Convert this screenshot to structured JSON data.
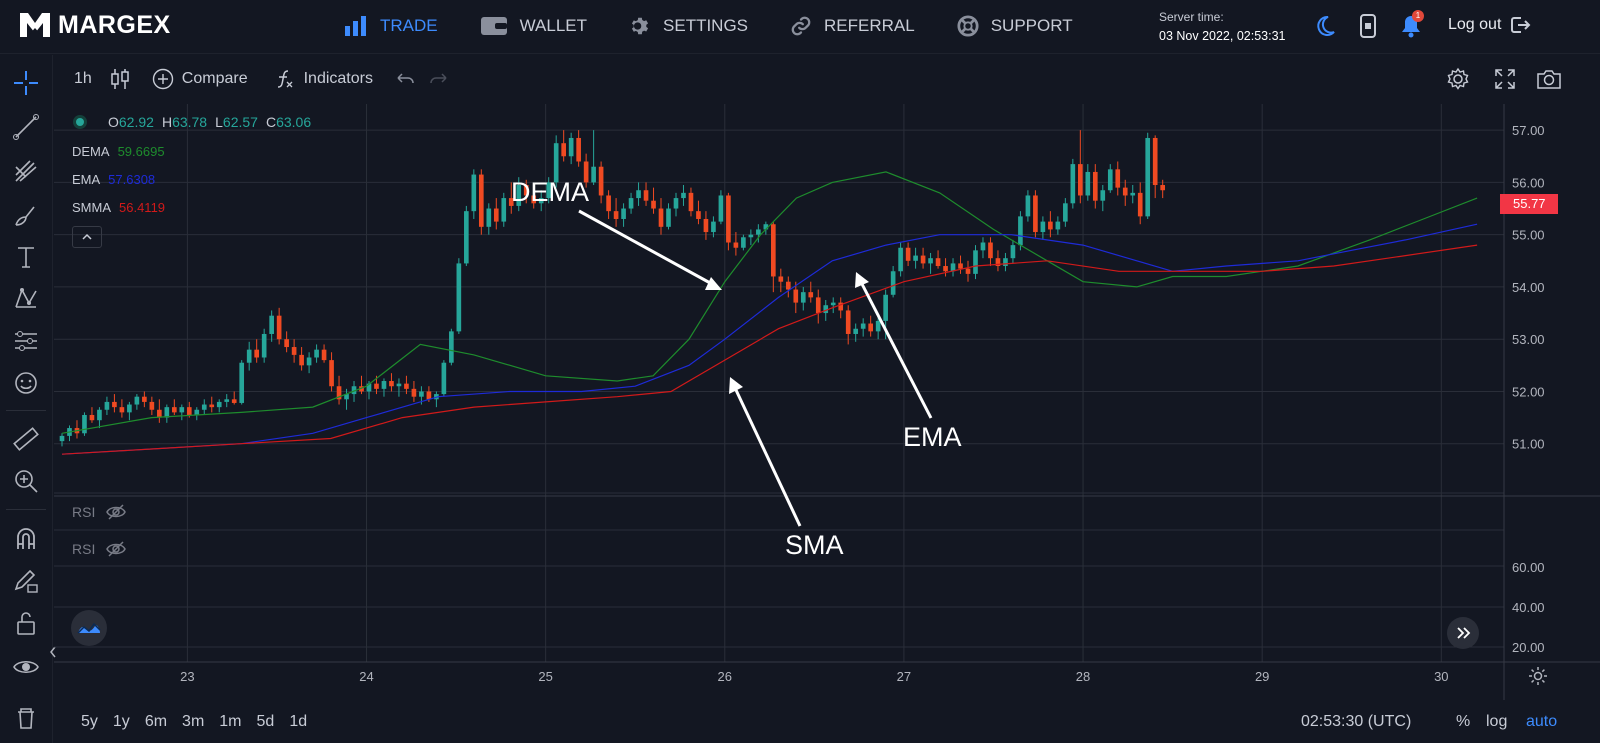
{
  "app": {
    "logo_text": "MARGEX"
  },
  "nav": {
    "items": [
      {
        "label": "TRADE",
        "icon": "bar-chart-icon",
        "active": true
      },
      {
        "label": "WALLET",
        "icon": "wallet-icon",
        "active": false
      },
      {
        "label": "SETTINGS",
        "icon": "gear-icon",
        "active": false
      },
      {
        "label": "REFERRAL",
        "icon": "link-icon",
        "active": false
      },
      {
        "label": "SUPPORT",
        "icon": "lifebuoy-icon",
        "active": false
      }
    ]
  },
  "server": {
    "label": "Server time:",
    "time": "03 Nov 2022, 02:53:31"
  },
  "notifications": {
    "count": "1"
  },
  "logout": {
    "label": "Log out"
  },
  "chart_toolbar": {
    "interval": "1h",
    "compare_label": "Compare",
    "indicators_label": "Indicators"
  },
  "legend": {
    "open_label": "O",
    "open": "62.92",
    "high_label": "H",
    "high": "63.78",
    "low_label": "L",
    "low": "62.57",
    "close_label": "C",
    "close": "63.06",
    "indicators": [
      {
        "name": "DEMA",
        "value": "59.6695",
        "color": "#1e8c2d"
      },
      {
        "name": "EMA",
        "value": "57.6308",
        "color": "#1e2bd8"
      },
      {
        "name": "SMMA",
        "value": "56.4119",
        "color": "#d11a1a"
      }
    ],
    "rsi": [
      "RSI",
      "RSI"
    ]
  },
  "annotations": {
    "dema": "DEMA",
    "ema": "EMA",
    "sma": "SMA"
  },
  "price_axis": {
    "main_ticks": [
      "57.00",
      "56.00",
      "55.00",
      "54.00",
      "53.00",
      "52.00",
      "51.00"
    ],
    "rsi_ticks": [
      "60.00",
      "40.00",
      "20.00"
    ],
    "current_price": "55.77"
  },
  "time_axis": {
    "ticks": [
      "23",
      "24",
      "25",
      "26",
      "27",
      "28",
      "29",
      "30"
    ]
  },
  "bottom": {
    "ranges": [
      "5y",
      "1y",
      "6m",
      "3m",
      "1m",
      "5d",
      "1d"
    ],
    "clock": "02:53:30 (UTC)",
    "percent": "%",
    "log": "log",
    "auto": "auto"
  },
  "colors": {
    "up": "#26a69a",
    "down": "#f04a22",
    "accent": "#3d8bfd",
    "background": "#131722"
  },
  "chart_data": {
    "type": "line",
    "ylim": [
      50.0,
      57.5
    ],
    "x_ticks": [
      "23",
      "24",
      "25",
      "26",
      "27",
      "28",
      "29",
      "30"
    ],
    "y_ticks": [
      51,
      52,
      53,
      54,
      55,
      56,
      57
    ],
    "series": [
      {
        "name": "DEMA",
        "color": "#1e8c2d",
        "x": [
          22.3,
          22.8,
          23.3,
          23.7,
          24.0,
          24.3,
          24.6,
          25.0,
          25.4,
          25.6,
          25.8,
          26.0,
          26.2,
          26.4,
          26.6,
          26.9,
          27.2,
          27.5,
          27.8,
          28.0,
          28.3,
          28.5,
          28.8,
          29.2,
          29.6,
          29.9,
          30.2
        ],
        "values": [
          51.2,
          51.5,
          51.6,
          51.7,
          52.1,
          52.9,
          52.7,
          52.3,
          52.2,
          52.3,
          53.0,
          54.1,
          55.0,
          55.7,
          56.0,
          56.2,
          55.8,
          55.1,
          54.5,
          54.1,
          54.0,
          54.2,
          54.2,
          54.4,
          54.9,
          55.3,
          55.7
        ]
      },
      {
        "name": "EMA",
        "color": "#1e2bd8",
        "x": [
          22.3,
          22.8,
          23.3,
          23.7,
          24.0,
          24.4,
          24.8,
          25.2,
          25.5,
          25.8,
          26.0,
          26.3,
          26.6,
          26.9,
          27.2,
          27.6,
          28.0,
          28.3,
          28.5,
          28.8,
          29.2,
          29.5,
          29.8,
          30.2
        ],
        "values": [
          50.8,
          50.9,
          51.0,
          51.2,
          51.5,
          51.9,
          52.0,
          52.0,
          52.1,
          52.5,
          53.0,
          53.8,
          54.5,
          54.8,
          55.0,
          55.0,
          54.8,
          54.5,
          54.3,
          54.4,
          54.5,
          54.7,
          54.9,
          55.2
        ]
      },
      {
        "name": "SMMA",
        "color": "#d11a1a",
        "x": [
          22.3,
          22.8,
          23.3,
          23.8,
          24.2,
          24.6,
          25.0,
          25.4,
          25.7,
          26.0,
          26.3,
          26.6,
          27.0,
          27.4,
          27.8,
          28.2,
          28.6,
          29.0,
          29.4,
          29.8,
          30.2
        ],
        "values": [
          50.8,
          50.9,
          51.0,
          51.1,
          51.5,
          51.7,
          51.8,
          51.9,
          52.0,
          52.6,
          53.2,
          53.6,
          54.1,
          54.4,
          54.5,
          54.3,
          54.3,
          54.3,
          54.4,
          54.6,
          54.8
        ]
      }
    ],
    "candles": {
      "x_start": 22.3,
      "x_step": 0.0418,
      "ohlc": [
        [
          51.05,
          51.2,
          50.95,
          51.15
        ],
        [
          51.15,
          51.35,
          51.05,
          51.3
        ],
        [
          51.3,
          51.45,
          51.1,
          51.2
        ],
        [
          51.2,
          51.6,
          51.15,
          51.55
        ],
        [
          51.55,
          51.7,
          51.4,
          51.45
        ],
        [
          51.45,
          51.7,
          51.3,
          51.65
        ],
        [
          51.65,
          51.9,
          51.55,
          51.8
        ],
        [
          51.8,
          51.95,
          51.6,
          51.7
        ],
        [
          51.7,
          51.85,
          51.5,
          51.6
        ],
        [
          51.6,
          51.8,
          51.45,
          51.75
        ],
        [
          51.75,
          51.95,
          51.65,
          51.9
        ],
        [
          51.9,
          52.0,
          51.7,
          51.8
        ],
        [
          51.8,
          51.9,
          51.55,
          51.65
        ],
        [
          51.65,
          51.85,
          51.4,
          51.5
        ],
        [
          51.5,
          51.75,
          51.4,
          51.7
        ],
        [
          51.7,
          51.85,
          51.55,
          51.6
        ],
        [
          51.6,
          51.75,
          51.45,
          51.7
        ],
        [
          51.7,
          51.8,
          51.5,
          51.55
        ],
        [
          51.55,
          51.7,
          51.45,
          51.65
        ],
        [
          51.65,
          51.85,
          51.55,
          51.75
        ],
        [
          51.75,
          51.9,
          51.6,
          51.7
        ],
        [
          51.7,
          51.85,
          51.6,
          51.8
        ],
        [
          51.8,
          51.95,
          51.7,
          51.85
        ],
        [
          51.85,
          52.0,
          51.75,
          51.78
        ],
        [
          51.78,
          52.6,
          51.75,
          52.55
        ],
        [
          52.55,
          52.95,
          52.4,
          52.8
        ],
        [
          52.8,
          53.0,
          52.55,
          52.65
        ],
        [
          52.65,
          53.2,
          52.55,
          53.1
        ],
        [
          53.1,
          53.55,
          52.95,
          53.45
        ],
        [
          53.45,
          53.6,
          52.9,
          53.0
        ],
        [
          53.0,
          53.15,
          52.75,
          52.85
        ],
        [
          52.85,
          53.0,
          52.55,
          52.7
        ],
        [
          52.7,
          52.85,
          52.4,
          52.5
        ],
        [
          52.5,
          52.75,
          52.35,
          52.65
        ],
        [
          52.65,
          52.9,
          52.55,
          52.8
        ],
        [
          52.8,
          52.9,
          52.55,
          52.6
        ],
        [
          52.6,
          52.75,
          52.0,
          52.1
        ],
        [
          52.1,
          52.3,
          51.75,
          51.85
        ],
        [
          51.85,
          52.05,
          51.65,
          51.95
        ],
        [
          51.95,
          52.2,
          51.8,
          52.1
        ],
        [
          52.1,
          52.3,
          51.95,
          52.0
        ],
        [
          52.0,
          52.2,
          51.85,
          52.15
        ],
        [
          52.15,
          52.3,
          51.95,
          52.05
        ],
        [
          52.05,
          52.25,
          51.9,
          52.2
        ],
        [
          52.2,
          52.35,
          52.0,
          52.1
        ],
        [
          52.1,
          52.25,
          51.9,
          52.15
        ],
        [
          52.15,
          52.3,
          51.95,
          52.05
        ],
        [
          52.05,
          52.2,
          51.8,
          51.9
        ],
        [
          51.9,
          52.1,
          51.75,
          52.0
        ],
        [
          52.0,
          52.1,
          51.8,
          51.85
        ],
        [
          51.85,
          52.0,
          51.7,
          51.95
        ],
        [
          51.95,
          52.6,
          51.9,
          52.55
        ],
        [
          52.55,
          53.2,
          52.5,
          53.15
        ],
        [
          53.15,
          54.55,
          53.1,
          54.45
        ],
        [
          54.45,
          55.55,
          54.4,
          55.45
        ],
        [
          55.45,
          56.25,
          55.3,
          56.15
        ],
        [
          56.15,
          56.25,
          55.0,
          55.15
        ],
        [
          55.15,
          55.6,
          55.0,
          55.5
        ],
        [
          55.5,
          55.7,
          55.1,
          55.25
        ],
        [
          55.25,
          55.8,
          55.15,
          55.7
        ],
        [
          55.7,
          56.0,
          55.4,
          55.55
        ],
        [
          55.55,
          56.1,
          55.45,
          55.95
        ],
        [
          55.95,
          56.05,
          55.6,
          55.75
        ],
        [
          55.75,
          55.9,
          55.5,
          55.6
        ],
        [
          55.6,
          55.85,
          55.45,
          55.7
        ],
        [
          55.7,
          56.1,
          55.6,
          56.0
        ],
        [
          56.0,
          56.9,
          55.9,
          56.75
        ],
        [
          56.75,
          57.0,
          56.4,
          56.5
        ],
        [
          56.5,
          56.95,
          56.35,
          56.85
        ],
        [
          56.85,
          57.0,
          56.3,
          56.4
        ],
        [
          56.4,
          56.55,
          55.9,
          56.0
        ],
        [
          56.0,
          57.0,
          55.95,
          56.3
        ],
        [
          56.3,
          56.4,
          55.6,
          55.75
        ],
        [
          55.75,
          55.85,
          55.3,
          55.45
        ],
        [
          55.45,
          55.7,
          55.15,
          55.3
        ],
        [
          55.3,
          55.6,
          55.15,
          55.5
        ],
        [
          55.5,
          55.8,
          55.4,
          55.7
        ],
        [
          55.7,
          56.0,
          55.55,
          55.85
        ],
        [
          55.85,
          56.0,
          55.55,
          55.65
        ],
        [
          55.65,
          55.9,
          55.4,
          55.5
        ],
        [
          55.5,
          55.7,
          55.0,
          55.15
        ],
        [
          55.15,
          55.6,
          55.1,
          55.5
        ],
        [
          55.5,
          55.8,
          55.35,
          55.7
        ],
        [
          55.7,
          55.95,
          55.55,
          55.8
        ],
        [
          55.8,
          55.9,
          55.35,
          55.45
        ],
        [
          55.45,
          55.65,
          55.2,
          55.3
        ],
        [
          55.3,
          55.45,
          54.9,
          55.05
        ],
        [
          55.05,
          55.35,
          54.95,
          55.25
        ],
        [
          55.25,
          55.85,
          55.2,
          55.75
        ],
        [
          55.75,
          55.8,
          54.7,
          54.85
        ],
        [
          54.85,
          55.05,
          54.6,
          54.75
        ],
        [
          54.75,
          55.0,
          54.7,
          54.95
        ],
        [
          54.95,
          55.1,
          54.8,
          55.0
        ],
        [
          55.0,
          55.2,
          54.85,
          55.1
        ],
        [
          55.1,
          55.25,
          55.0,
          55.2
        ],
        [
          55.2,
          55.25,
          53.9,
          54.2
        ],
        [
          54.2,
          54.35,
          53.9,
          54.1
        ],
        [
          54.1,
          54.2,
          53.8,
          53.95
        ],
        [
          53.95,
          54.1,
          53.5,
          53.7
        ],
        [
          53.7,
          54.0,
          53.55,
          53.9
        ],
        [
          53.9,
          54.1,
          53.7,
          53.8
        ],
        [
          53.8,
          53.95,
          53.3,
          53.5
        ],
        [
          53.5,
          53.75,
          53.35,
          53.65
        ],
        [
          53.65,
          53.8,
          53.5,
          53.7
        ],
        [
          53.7,
          53.8,
          53.4,
          53.55
        ],
        [
          53.55,
          53.65,
          52.9,
          53.1
        ],
        [
          53.1,
          53.3,
          52.95,
          53.2
        ],
        [
          53.2,
          53.4,
          53.05,
          53.3
        ],
        [
          53.3,
          53.45,
          53.05,
          53.15
        ],
        [
          53.15,
          53.45,
          53.0,
          53.35
        ],
        [
          53.35,
          53.95,
          53.0,
          53.85
        ],
        [
          53.85,
          54.4,
          53.8,
          54.3
        ],
        [
          54.3,
          54.85,
          54.2,
          54.75
        ],
        [
          54.75,
          54.85,
          54.4,
          54.5
        ],
        [
          54.5,
          54.75,
          54.35,
          54.6
        ],
        [
          54.6,
          54.75,
          54.35,
          54.45
        ],
        [
          54.45,
          54.65,
          54.25,
          54.55
        ],
        [
          54.55,
          54.7,
          54.35,
          54.4
        ],
        [
          54.4,
          54.55,
          54.2,
          54.3
        ],
        [
          54.3,
          54.55,
          54.2,
          54.45
        ],
        [
          54.45,
          54.6,
          54.25,
          54.35
        ],
        [
          54.35,
          54.5,
          54.1,
          54.25
        ],
        [
          54.25,
          54.8,
          54.15,
          54.7
        ],
        [
          54.7,
          54.95,
          54.55,
          54.85
        ],
        [
          54.85,
          54.95,
          54.4,
          54.55
        ],
        [
          54.55,
          54.7,
          54.3,
          54.4
        ],
        [
          54.4,
          54.65,
          54.3,
          54.55
        ],
        [
          54.55,
          54.9,
          54.45,
          54.8
        ],
        [
          54.8,
          55.45,
          54.7,
          55.35
        ],
        [
          55.35,
          55.85,
          55.25,
          55.75
        ],
        [
          55.75,
          55.85,
          54.95,
          55.05
        ],
        [
          55.05,
          55.35,
          54.9,
          55.25
        ],
        [
          55.25,
          55.45,
          54.95,
          55.1
        ],
        [
          55.1,
          55.35,
          55.0,
          55.25
        ],
        [
          55.25,
          55.7,
          55.15,
          55.6
        ],
        [
          55.6,
          56.45,
          55.5,
          56.35
        ],
        [
          56.35,
          57.0,
          55.6,
          55.75
        ],
        [
          55.75,
          56.35,
          55.65,
          56.2
        ],
        [
          56.2,
          56.35,
          55.5,
          55.65
        ],
        [
          55.65,
          55.95,
          55.45,
          55.85
        ],
        [
          55.85,
          56.35,
          55.8,
          56.25
        ],
        [
          56.25,
          56.4,
          55.75,
          55.9
        ],
        [
          55.9,
          56.05,
          55.55,
          55.75
        ],
        [
          55.75,
          55.95,
          55.6,
          55.8
        ],
        [
          55.8,
          56.0,
          55.2,
          55.35
        ],
        [
          55.35,
          56.95,
          55.3,
          56.85
        ],
        [
          56.85,
          56.9,
          55.7,
          55.95
        ],
        [
          55.95,
          56.05,
          55.7,
          55.85
        ]
      ]
    }
  }
}
